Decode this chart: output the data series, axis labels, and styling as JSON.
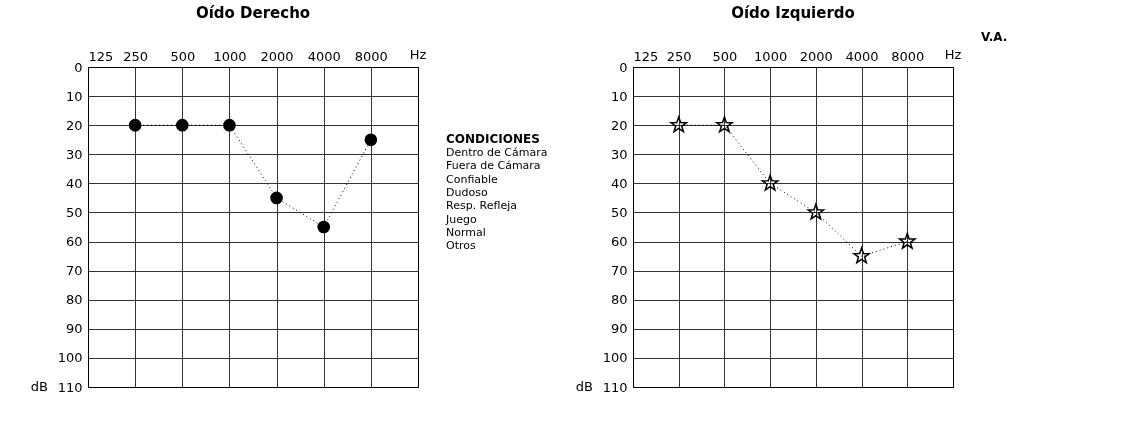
{
  "chart_data": [
    {
      "type": "line",
      "title": "Oído Derecho",
      "xlabel": "Hz",
      "ylabel": "dB",
      "categories": [
        "125",
        "250",
        "500",
        "1000",
        "2000",
        "4000",
        "8000"
      ],
      "ylim": [
        110,
        0
      ],
      "yticks": [
        0,
        10,
        20,
        30,
        40,
        50,
        60,
        70,
        80,
        90,
        100,
        110
      ],
      "grid": true,
      "legend": false,
      "marker": "circle",
      "line_style": "dotted",
      "series": [
        {
          "color": "#000000",
          "values": [
            null,
            20,
            20,
            20,
            45,
            55,
            25
          ]
        }
      ],
      "annotations": [
        "CONDICIONES",
        "Dentro de Cámara",
        "Fuera de Cámara",
        "Confiable",
        "Dudoso",
        "Resp. Refleja",
        "Juego",
        "Normal",
        "Otros"
      ]
    },
    {
      "type": "line",
      "title": "Oído Izquierdo",
      "xlabel": "Hz",
      "ylabel": "dB",
      "categories": [
        "125",
        "250",
        "500",
        "1000",
        "2000",
        "4000",
        "8000"
      ],
      "ylim": [
        110,
        0
      ],
      "yticks": [
        0,
        10,
        20,
        30,
        40,
        50,
        60,
        70,
        80,
        90,
        100,
        110
      ],
      "grid": true,
      "legend": false,
      "marker": "star",
      "line_style": "dotted",
      "series": [
        {
          "color": "#000000",
          "values": [
            null,
            20,
            20,
            40,
            50,
            65,
            60
          ]
        }
      ],
      "annotations": [
        "V.A."
      ]
    }
  ]
}
